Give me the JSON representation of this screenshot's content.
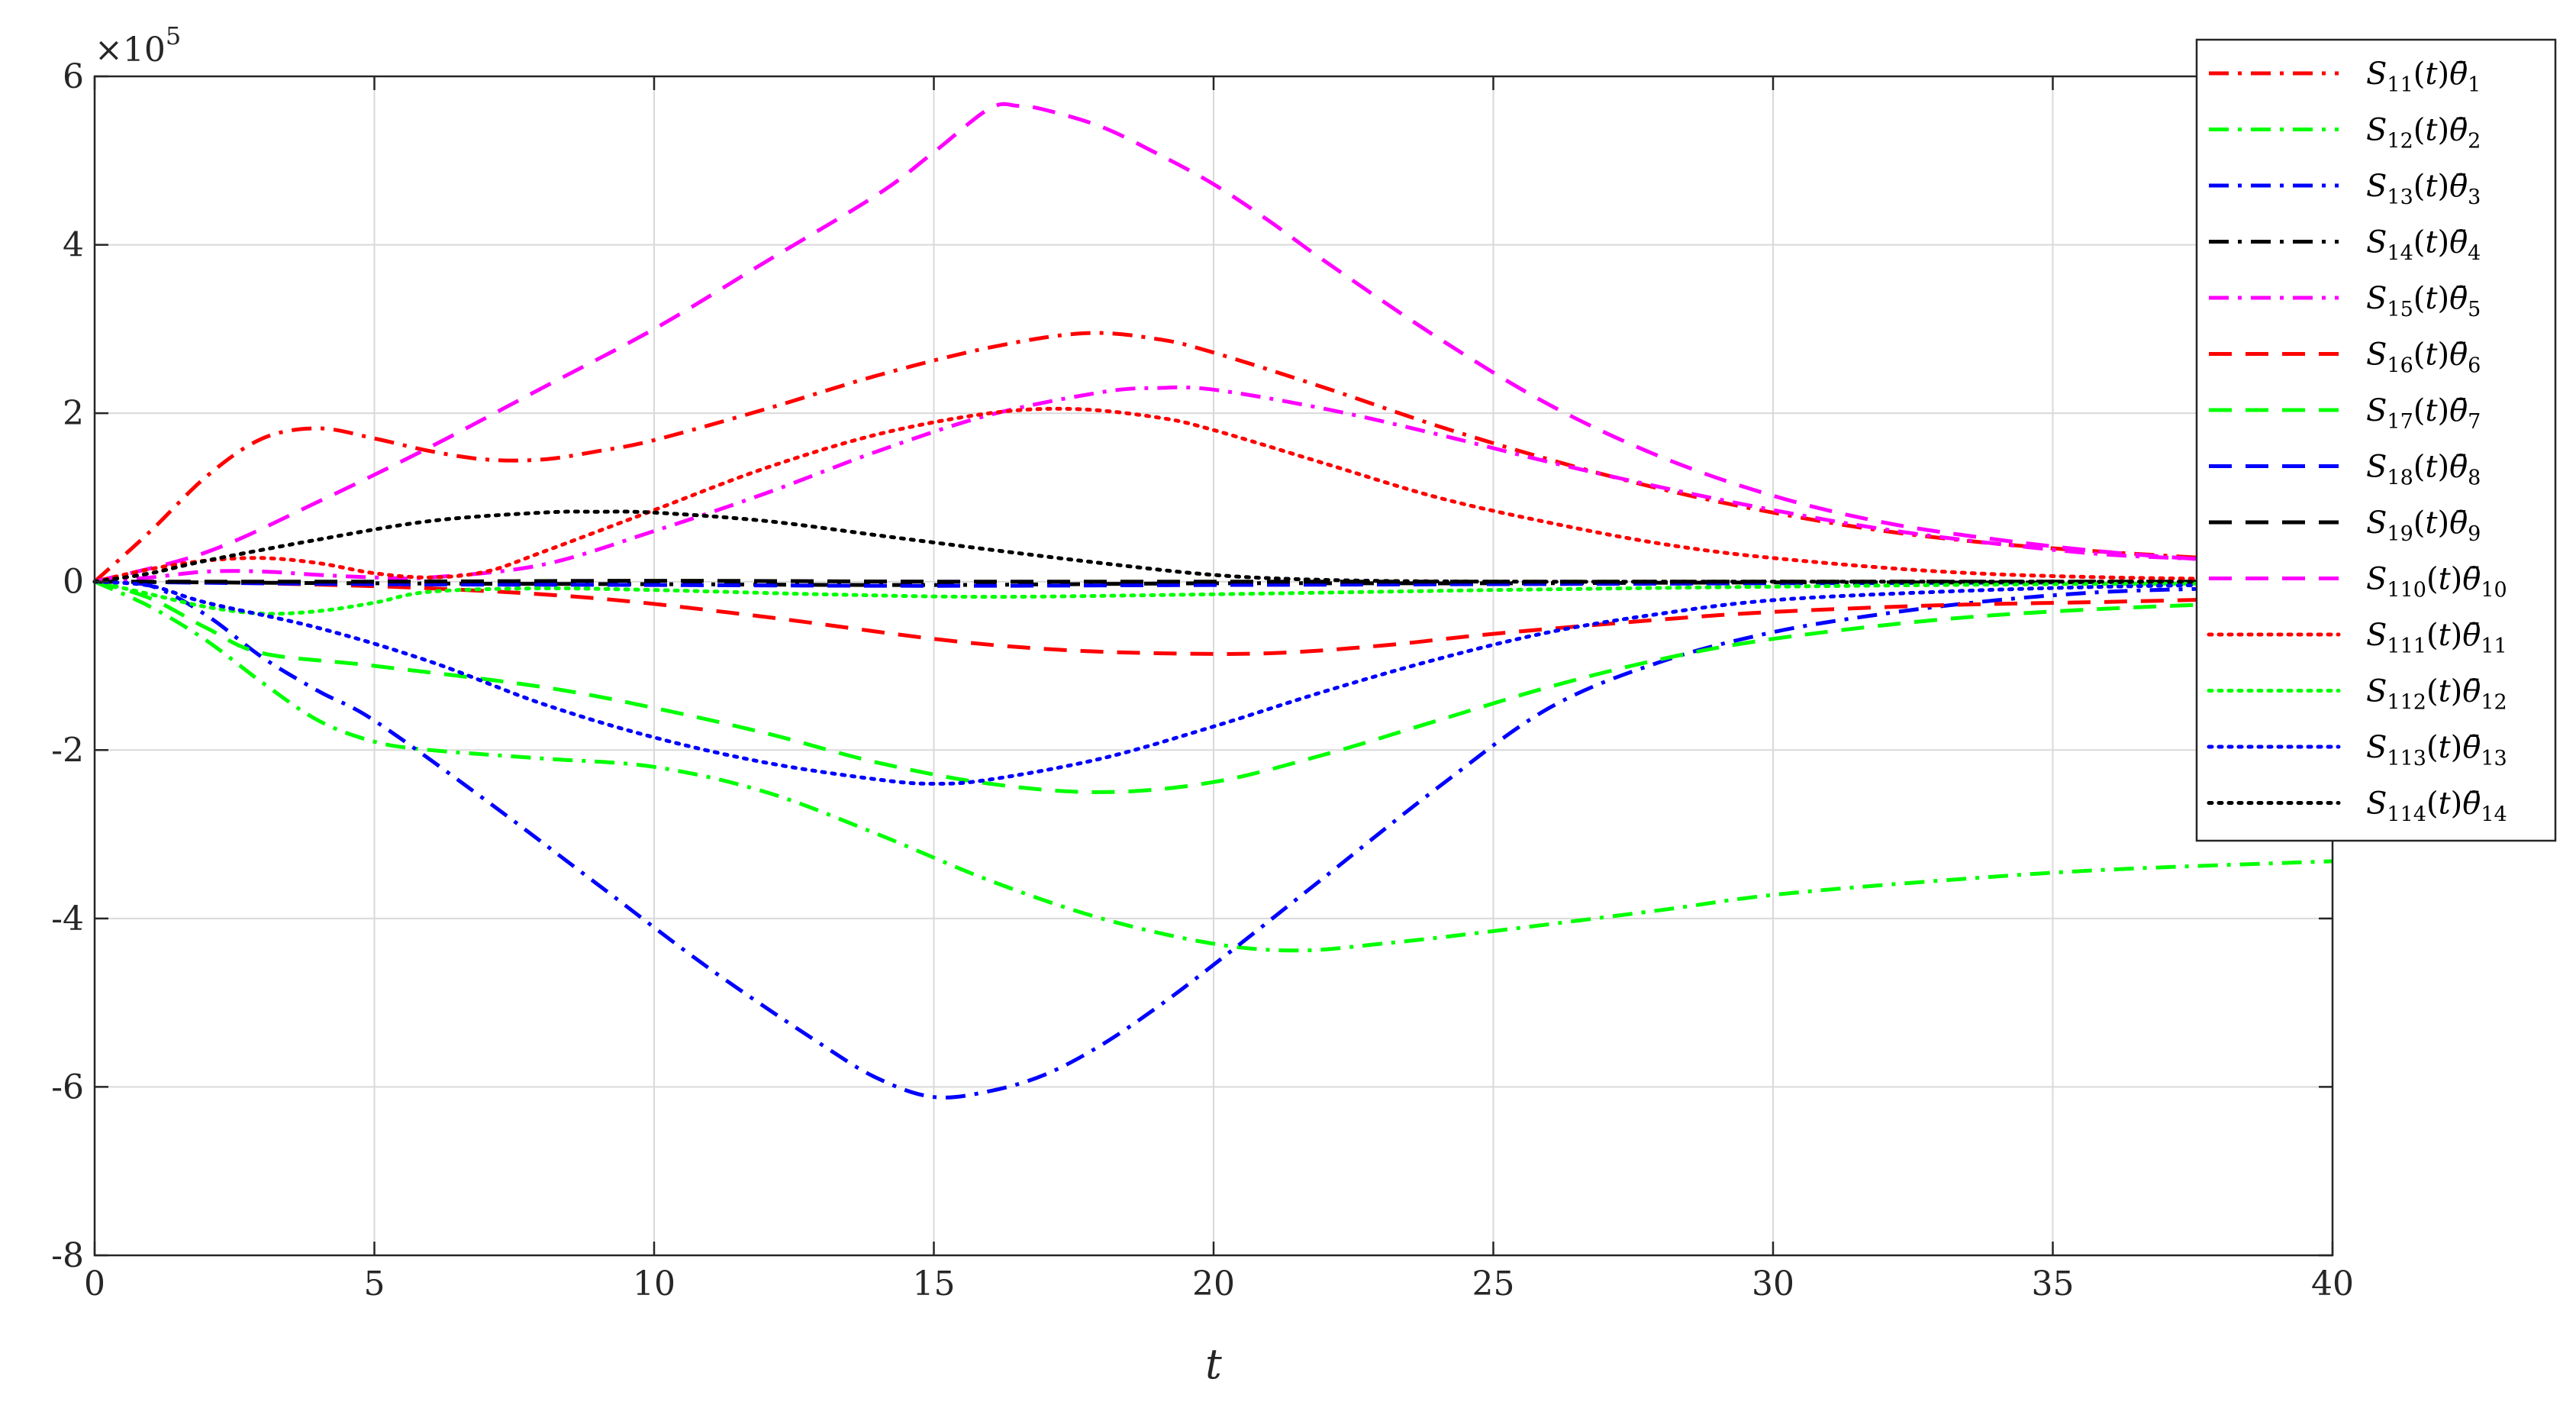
{
  "chart_data": {
    "type": "line",
    "title": "",
    "xlabel": "t",
    "ylabel": "",
    "y_exponent_label": "×10",
    "y_exponent_power": "5",
    "xlim": [
      0,
      40
    ],
    "ylim": [
      -8,
      6
    ],
    "x_ticks": [
      0,
      5,
      10,
      15,
      20,
      25,
      30,
      35,
      40
    ],
    "y_ticks": [
      -8,
      -6,
      -4,
      -2,
      0,
      2,
      4,
      6
    ],
    "grid": true,
    "legend_position": "top-right",
    "series": [
      {
        "name": "S11(t)θ1",
        "label_sub_s": "11",
        "label_sub_theta": "1",
        "color": "#ff0000",
        "dash": "dashdot",
        "points": [
          [
            0,
            0
          ],
          [
            1,
            0.6
          ],
          [
            2,
            1.25
          ],
          [
            3,
            1.7
          ],
          [
            4,
            1.82
          ],
          [
            5,
            1.7
          ],
          [
            6,
            1.55
          ],
          [
            7,
            1.45
          ],
          [
            8,
            1.45
          ],
          [
            9,
            1.55
          ],
          [
            10,
            1.68
          ],
          [
            12,
            2.05
          ],
          [
            14,
            2.45
          ],
          [
            16,
            2.78
          ],
          [
            17.7,
            2.95
          ],
          [
            19,
            2.88
          ],
          [
            20,
            2.72
          ],
          [
            22,
            2.3
          ],
          [
            24,
            1.85
          ],
          [
            26,
            1.45
          ],
          [
            28,
            1.1
          ],
          [
            30,
            0.82
          ],
          [
            32,
            0.6
          ],
          [
            34,
            0.45
          ],
          [
            36,
            0.35
          ],
          [
            38,
            0.27
          ]
        ]
      },
      {
        "name": "S12(t)θ2",
        "label_sub_s": "12",
        "label_sub_theta": "2",
        "color": "#00ff00",
        "dash": "dashdot",
        "points": [
          [
            0,
            0
          ],
          [
            1,
            -0.3
          ],
          [
            2,
            -0.7
          ],
          [
            3,
            -1.2
          ],
          [
            4,
            -1.65
          ],
          [
            5,
            -1.9
          ],
          [
            6,
            -2.0
          ],
          [
            8,
            -2.1
          ],
          [
            10,
            -2.2
          ],
          [
            12,
            -2.5
          ],
          [
            14,
            -3.0
          ],
          [
            16,
            -3.55
          ],
          [
            18,
            -4.0
          ],
          [
            20,
            -4.3
          ],
          [
            21.5,
            -4.38
          ],
          [
            23,
            -4.3
          ],
          [
            25,
            -4.15
          ],
          [
            28,
            -3.9
          ],
          [
            30,
            -3.72
          ],
          [
            33,
            -3.55
          ],
          [
            36,
            -3.42
          ],
          [
            40,
            -3.32
          ]
        ]
      },
      {
        "name": "S13(t)θ3",
        "label_sub_s": "13",
        "label_sub_theta": "3",
        "color": "#0000ff",
        "dash": "dashdot",
        "points": [
          [
            0,
            0
          ],
          [
            1,
            -0.05
          ],
          [
            2,
            -0.4
          ],
          [
            3,
            -0.9
          ],
          [
            4,
            -1.3
          ],
          [
            5,
            -1.65
          ],
          [
            7,
            -2.6
          ],
          [
            9,
            -3.6
          ],
          [
            11,
            -4.6
          ],
          [
            13,
            -5.5
          ],
          [
            14,
            -5.9
          ],
          [
            15,
            -6.12
          ],
          [
            16,
            -6.05
          ],
          [
            17,
            -5.85
          ],
          [
            18,
            -5.5
          ],
          [
            19,
            -5.05
          ],
          [
            20,
            -4.55
          ],
          [
            22,
            -3.5
          ],
          [
            24,
            -2.45
          ],
          [
            26,
            -1.5
          ],
          [
            28,
            -0.95
          ],
          [
            30,
            -0.6
          ],
          [
            32,
            -0.38
          ],
          [
            34,
            -0.22
          ],
          [
            36,
            -0.12
          ],
          [
            38,
            -0.08
          ]
        ]
      },
      {
        "name": "S14(t)θ4",
        "label_sub_s": "14",
        "label_sub_theta": "4",
        "color": "#000000",
        "dash": "dashdot",
        "points": [
          [
            0,
            0
          ],
          [
            5,
            -0.02
          ],
          [
            10,
            -0.03
          ],
          [
            15,
            -0.04
          ],
          [
            20,
            -0.02
          ],
          [
            25,
            -0.02
          ],
          [
            30,
            -0.01
          ],
          [
            35,
            -0.01
          ],
          [
            38,
            0
          ]
        ]
      },
      {
        "name": "S15(t)θ5",
        "label_sub_s": "15",
        "label_sub_theta": "5",
        "color": "#ff00ff",
        "dash": "dashdot",
        "points": [
          [
            0,
            0
          ],
          [
            1,
            0.05
          ],
          [
            2,
            0.12
          ],
          [
            3,
            0.12
          ],
          [
            4,
            0.08
          ],
          [
            5,
            0.05
          ],
          [
            6,
            0.05
          ],
          [
            8,
            0.2
          ],
          [
            10,
            0.6
          ],
          [
            12,
            1.05
          ],
          [
            14,
            1.55
          ],
          [
            16,
            1.98
          ],
          [
            18,
            2.25
          ],
          [
            19,
            2.3
          ],
          [
            20,
            2.28
          ],
          [
            22,
            2.05
          ],
          [
            24,
            1.75
          ],
          [
            26,
            1.42
          ],
          [
            28,
            1.12
          ],
          [
            30,
            0.85
          ],
          [
            32,
            0.62
          ],
          [
            34,
            0.45
          ],
          [
            36,
            0.32
          ],
          [
            38,
            0.26
          ]
        ]
      },
      {
        "name": "S16(t)θ6",
        "label_sub_s": "16",
        "label_sub_theta": "6",
        "color": "#ff0000",
        "dash": "dashed",
        "points": [
          [
            0,
            0
          ],
          [
            3,
            -0.02
          ],
          [
            6,
            -0.08
          ],
          [
            9,
            -0.2
          ],
          [
            12,
            -0.42
          ],
          [
            15,
            -0.68
          ],
          [
            17,
            -0.8
          ],
          [
            19,
            -0.85
          ],
          [
            21,
            -0.85
          ],
          [
            23,
            -0.76
          ],
          [
            25,
            -0.62
          ],
          [
            28,
            -0.45
          ],
          [
            30,
            -0.36
          ],
          [
            33,
            -0.28
          ],
          [
            36,
            -0.24
          ],
          [
            40,
            -0.18
          ]
        ]
      },
      {
        "name": "S17(t)θ7",
        "label_sub_s": "17",
        "label_sub_theta": "7",
        "color": "#00ff00",
        "dash": "dashed",
        "points": [
          [
            0,
            0
          ],
          [
            1,
            -0.2
          ],
          [
            2,
            -0.55
          ],
          [
            3,
            -0.85
          ],
          [
            5,
            -1.0
          ],
          [
            8,
            -1.25
          ],
          [
            10,
            -1.5
          ],
          [
            12,
            -1.8
          ],
          [
            14,
            -2.15
          ],
          [
            16,
            -2.4
          ],
          [
            18,
            -2.5
          ],
          [
            20,
            -2.38
          ],
          [
            22,
            -2.05
          ],
          [
            24,
            -1.65
          ],
          [
            26,
            -1.25
          ],
          [
            28,
            -0.92
          ],
          [
            30,
            -0.68
          ],
          [
            33,
            -0.45
          ],
          [
            36,
            -0.32
          ],
          [
            40,
            -0.22
          ]
        ]
      },
      {
        "name": "S18(t)θ8",
        "label_sub_s": "18",
        "label_sub_theta": "8",
        "color": "#0000ff",
        "dash": "dashed",
        "points": [
          [
            0,
            0
          ],
          [
            5,
            -0.03
          ],
          [
            10,
            -0.04
          ],
          [
            15,
            -0.05
          ],
          [
            20,
            -0.04
          ],
          [
            25,
            -0.03
          ],
          [
            30,
            -0.02
          ],
          [
            35,
            -0.01
          ],
          [
            38,
            0
          ]
        ]
      },
      {
        "name": "S19(t)θ9",
        "label_sub_s": "19",
        "label_sub_theta": "9",
        "color": "#000000",
        "dash": "dashed",
        "points": [
          [
            0,
            0
          ],
          [
            5,
            0
          ],
          [
            10,
            0.01
          ],
          [
            15,
            0
          ],
          [
            20,
            0
          ],
          [
            25,
            0
          ],
          [
            30,
            0
          ],
          [
            35,
            0
          ],
          [
            38,
            0
          ]
        ]
      },
      {
        "name": "S110(t)θ10",
        "label_sub_s": "110",
        "label_sub_theta": "10",
        "color": "#ff00ff",
        "dash": "dashed",
        "points": [
          [
            0,
            0
          ],
          [
            2,
            0.35
          ],
          [
            4,
            0.95
          ],
          [
            6,
            1.6
          ],
          [
            8,
            2.3
          ],
          [
            10,
            3.0
          ],
          [
            12,
            3.8
          ],
          [
            14,
            4.6
          ],
          [
            15,
            5.1
          ],
          [
            16,
            5.62
          ],
          [
            16.5,
            5.65
          ],
          [
            17,
            5.6
          ],
          [
            18,
            5.4
          ],
          [
            19,
            5.08
          ],
          [
            20,
            4.72
          ],
          [
            21,
            4.28
          ],
          [
            22,
            3.8
          ],
          [
            24,
            2.9
          ],
          [
            26,
            2.1
          ],
          [
            28,
            1.48
          ],
          [
            30,
            1.02
          ],
          [
            32,
            0.7
          ],
          [
            34,
            0.5
          ],
          [
            36,
            0.35
          ],
          [
            38,
            0.25
          ],
          [
            40,
            0.18
          ]
        ]
      },
      {
        "name": "S111(t)θ11",
        "label_sub_s": "111",
        "label_sub_theta": "11",
        "color": "#ff0000",
        "dash": "dotted",
        "points": [
          [
            0,
            0
          ],
          [
            1,
            0.15
          ],
          [
            2,
            0.25
          ],
          [
            3,
            0.28
          ],
          [
            4,
            0.22
          ],
          [
            5,
            0.1
          ],
          [
            6,
            0.05
          ],
          [
            7,
            0.12
          ],
          [
            8,
            0.35
          ],
          [
            10,
            0.85
          ],
          [
            12,
            1.35
          ],
          [
            14,
            1.75
          ],
          [
            16,
            2.0
          ],
          [
            17.5,
            2.05
          ],
          [
            19,
            1.95
          ],
          [
            20,
            1.8
          ],
          [
            22,
            1.4
          ],
          [
            24,
            1.0
          ],
          [
            26,
            0.7
          ],
          [
            28,
            0.45
          ],
          [
            30,
            0.28
          ],
          [
            33,
            0.12
          ],
          [
            36,
            0.05
          ],
          [
            40,
            0.02
          ]
        ]
      },
      {
        "name": "S112(t)θ12",
        "label_sub_s": "112",
        "label_sub_theta": "12",
        "color": "#00ff00",
        "dash": "dotted",
        "points": [
          [
            0,
            0
          ],
          [
            1,
            -0.15
          ],
          [
            2,
            -0.3
          ],
          [
            3,
            -0.38
          ],
          [
            4,
            -0.35
          ],
          [
            5,
            -0.25
          ],
          [
            6,
            -0.12
          ],
          [
            8,
            -0.08
          ],
          [
            10,
            -0.1
          ],
          [
            13,
            -0.15
          ],
          [
            16,
            -0.18
          ],
          [
            20,
            -0.15
          ],
          [
            25,
            -0.1
          ],
          [
            30,
            -0.06
          ],
          [
            35,
            -0.03
          ],
          [
            40,
            -0.02
          ]
        ]
      },
      {
        "name": "S113(t)θ13",
        "label_sub_s": "113",
        "label_sub_theta": "13",
        "color": "#0000ff",
        "dash": "dotted",
        "points": [
          [
            0,
            0
          ],
          [
            1,
            -0.05
          ],
          [
            2,
            -0.25
          ],
          [
            4,
            -0.55
          ],
          [
            6,
            -0.95
          ],
          [
            8,
            -1.45
          ],
          [
            10,
            -1.85
          ],
          [
            12,
            -2.15
          ],
          [
            14,
            -2.35
          ],
          [
            15,
            -2.4
          ],
          [
            16,
            -2.35
          ],
          [
            18,
            -2.1
          ],
          [
            20,
            -1.72
          ],
          [
            22,
            -1.3
          ],
          [
            24,
            -0.92
          ],
          [
            26,
            -0.6
          ],
          [
            28,
            -0.38
          ],
          [
            30,
            -0.22
          ],
          [
            33,
            -0.12
          ],
          [
            36,
            -0.06
          ],
          [
            40,
            -0.02
          ]
        ]
      },
      {
        "name": "S114(t)θ14",
        "label_sub_s": "114",
        "label_sub_theta": "14",
        "color": "#000000",
        "dash": "dotted",
        "points": [
          [
            0,
            0
          ],
          [
            1,
            0.1
          ],
          [
            2,
            0.25
          ],
          [
            4,
            0.5
          ],
          [
            6,
            0.72
          ],
          [
            8,
            0.82
          ],
          [
            9,
            0.83
          ],
          [
            10,
            0.82
          ],
          [
            12,
            0.72
          ],
          [
            14,
            0.55
          ],
          [
            16,
            0.38
          ],
          [
            18,
            0.22
          ],
          [
            20,
            0.08
          ],
          [
            22,
            0.02
          ],
          [
            25,
            0
          ],
          [
            30,
            0
          ],
          [
            38,
            0
          ]
        ]
      }
    ]
  }
}
